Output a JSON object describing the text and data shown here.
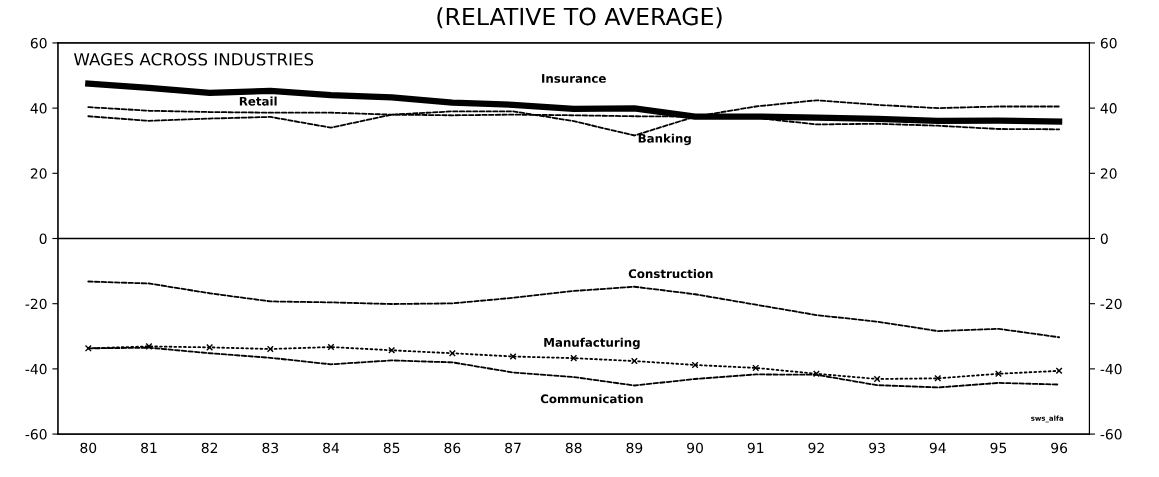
{
  "chart_data": {
    "type": "line",
    "title": "WAGES ACROSS INDUSTRIES",
    "subtitle": "(RELATIVE TO AVERAGE)",
    "categories": [
      "80",
      "81",
      "82",
      "83",
      "84",
      "85",
      "86",
      "87",
      "88",
      "89",
      "90",
      "91",
      "92",
      "93",
      "94",
      "95",
      "96"
    ],
    "series": [
      {
        "name": "Insurance",
        "color": "#000000",
        "line_style": "solid",
        "values": [
          47.5,
          46.2,
          44.7,
          45.3,
          44.0,
          43.3,
          41.7,
          41.0,
          39.8,
          39.9,
          37.4,
          37.4,
          37.1,
          36.7,
          36.1,
          36.2,
          35.9
        ]
      },
      {
        "name": "Retail",
        "color": "#000000",
        "line_style": "dashed",
        "values": [
          40.3,
          39.2,
          38.8,
          38.6,
          38.6,
          38.0,
          37.8,
          38.0,
          37.8,
          37.5,
          37.4,
          37.0,
          35.0,
          35.2,
          34.6,
          33.6,
          33.5
        ]
      },
      {
        "name": "Banking",
        "color": "#000000",
        "line_style": "dashed",
        "values": [
          37.5,
          36.1,
          36.8,
          37.3,
          34.0,
          38.0,
          39.0,
          39.0,
          36.0,
          31.6,
          37.4,
          40.5,
          42.4,
          41.0,
          40.0,
          40.5,
          40.5
        ]
      },
      {
        "name": "Construction",
        "color": "#000000",
        "line_style": "dashed",
        "values": [
          -13.2,
          -13.8,
          -16.8,
          -19.3,
          -19.6,
          -20.1,
          -19.9,
          -18.2,
          -16.1,
          -14.8,
          -17.1,
          -20.3,
          -23.5,
          -25.5,
          -28.4,
          -27.7,
          -30.3
        ]
      },
      {
        "name": "Manufacturing",
        "color": "#000000",
        "line_style": "dotted",
        "marker": "cross",
        "values": [
          -33.7,
          -33.1,
          -33.4,
          -33.9,
          -33.3,
          -34.3,
          -35.2,
          -36.2,
          -36.7,
          -37.6,
          -38.8,
          -39.7,
          -41.5,
          -43.1,
          -42.9,
          -41.5,
          -40.6
        ]
      },
      {
        "name": "Communication",
        "color": "#000000",
        "line_style": "dashed",
        "values": [
          -33.7,
          -33.5,
          -35.2,
          -36.6,
          -38.6,
          -37.4,
          -38.0,
          -41.1,
          -42.5,
          -45.1,
          -43.1,
          -41.7,
          -41.8,
          -45.0,
          -45.7,
          -44.3,
          -44.8
        ]
      }
    ],
    "ylim": [
      -60,
      60
    ],
    "yticks": [
      -60,
      -40,
      -20,
      0,
      20,
      40,
      60
    ],
    "y2lim": [
      -60,
      60
    ],
    "y2ticks": [
      -60,
      -40,
      -20,
      0,
      20,
      40,
      60
    ],
    "ref_lines": [
      {
        "axis": "y",
        "value": 0,
        "color": "#000000"
      }
    ],
    "annotations": [
      "sws_alfa"
    ],
    "grid": false,
    "legend": false
  }
}
